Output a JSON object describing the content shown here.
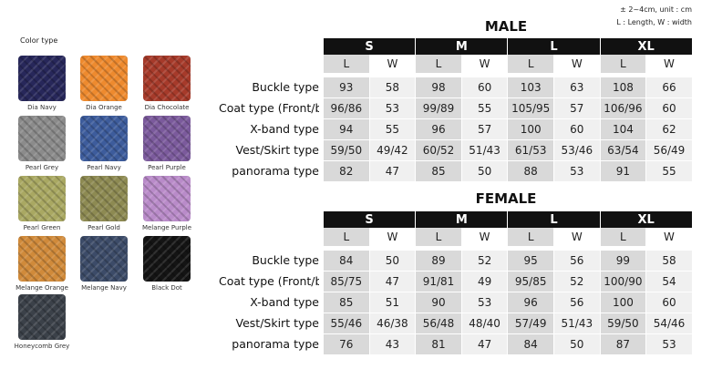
{
  "legend": {
    "title": "Color type",
    "swatches": [
      "Dia Navy",
      "Dia Orange",
      "Dia Chocolate",
      "Pearl Grey",
      "Pearl Navy",
      "Pearl Purple",
      "Pearl Green",
      "Pearl Gold",
      "Melange Purple",
      "Melange Orange",
      "Melange Navy",
      "Black Dot",
      "Honeycomb Grey"
    ]
  },
  "note": [
    "± 2~4cm, unit : cm",
    "L : Length, W : width"
  ],
  "tables": [
    {
      "title": "MALE",
      "sizes": [
        "S",
        "M",
        "L",
        "XL"
      ],
      "subheaders": [
        "L",
        "W",
        "L",
        "W",
        "L",
        "W",
        "L",
        "W"
      ],
      "rows": [
        {
          "label": "Buckle type",
          "cells": [
            "93",
            "58",
            "98",
            "60",
            "103",
            "63",
            "108",
            "66"
          ]
        },
        {
          "label": "Coat type (Front/back)",
          "cells": [
            "96/86",
            "53",
            "99/89",
            "55",
            "105/95",
            "57",
            "106/96",
            "60"
          ]
        },
        {
          "label": "X-band type",
          "cells": [
            "94",
            "55",
            "96",
            "57",
            "100",
            "60",
            "104",
            "62"
          ]
        },
        {
          "label": "Vest/Skirt type",
          "cells": [
            "59/50",
            "49/42",
            "60/52",
            "51/43",
            "61/53",
            "53/46",
            "63/54",
            "56/49"
          ]
        },
        {
          "label": "panorama type",
          "cells": [
            "82",
            "47",
            "85",
            "50",
            "88",
            "53",
            "91",
            "55"
          ]
        }
      ]
    },
    {
      "title": "FEMALE",
      "sizes": [
        "S",
        "M",
        "L",
        "XL"
      ],
      "subheaders": [
        "L",
        "W",
        "L",
        "W",
        "L",
        "W",
        "L",
        "W"
      ],
      "rows": [
        {
          "label": "Buckle type",
          "cells": [
            "84",
            "50",
            "89",
            "52",
            "95",
            "56",
            "99",
            "58"
          ]
        },
        {
          "label": "Coat type (Front/back)",
          "cells": [
            "85/75",
            "47",
            "91/81",
            "49",
            "95/85",
            "52",
            "100/90",
            "54"
          ]
        },
        {
          "label": "X-band type",
          "cells": [
            "85",
            "51",
            "90",
            "53",
            "96",
            "56",
            "100",
            "60"
          ]
        },
        {
          "label": "Vest/Skirt type",
          "cells": [
            "55/46",
            "46/38",
            "56/48",
            "48/40",
            "57/49",
            "51/43",
            "59/50",
            "54/46"
          ]
        },
        {
          "label": "panorama type",
          "cells": [
            "76",
            "43",
            "81",
            "47",
            "84",
            "50",
            "87",
            "53"
          ]
        }
      ]
    }
  ]
}
